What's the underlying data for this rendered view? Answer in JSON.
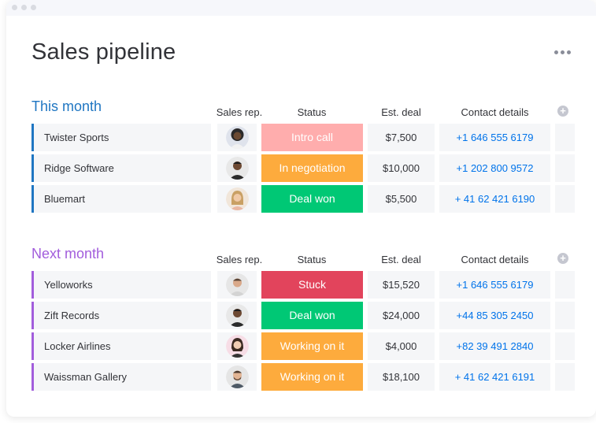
{
  "board": {
    "title": "Sales pipeline",
    "more_icon": "ellipsis-icon"
  },
  "columns": {
    "rep": "Sales rep.",
    "status": "Status",
    "deal": "Est. deal",
    "contact": "Contact details"
  },
  "colors": {
    "status_intro": "#ffadad",
    "status_negotiation": "#fdab3d",
    "status_won": "#00c875",
    "status_stuck": "#e2445c",
    "status_working": "#fdab3d",
    "this_month": "#1f76c2",
    "next_month": "#a25ddc"
  },
  "groups": [
    {
      "title": "This month",
      "color": "#1f76c2",
      "rows": [
        {
          "name": "Twister Sports",
          "status": "Intro call",
          "status_color": "#ffadad",
          "deal": "$7,500",
          "contact": "+1 646 555 6179",
          "avatar": "person-avatar"
        },
        {
          "name": "Ridge Software",
          "status": "In negotiation",
          "status_color": "#fdab3d",
          "deal": "$10,000",
          "contact": "+1 202 800 9572",
          "avatar": "person-avatar"
        },
        {
          "name": "Bluemart",
          "status": "Deal won",
          "status_color": "#00c875",
          "deal": "$5,500",
          "contact": "+ 41 62 421 6190",
          "avatar": "person-avatar"
        }
      ]
    },
    {
      "title": "Next month",
      "color": "#a25ddc",
      "rows": [
        {
          "name": "Yelloworks",
          "status": "Stuck",
          "status_color": "#e2445c",
          "deal": "$15,520",
          "contact": "+1 646 555 6179",
          "avatar": "person-avatar"
        },
        {
          "name": "Zift Records",
          "status": "Deal won",
          "status_color": "#00c875",
          "deal": "$24,000",
          "contact": "+44 85 305 2450",
          "avatar": "person-avatar"
        },
        {
          "name": "Locker Airlines",
          "status": "Working on it",
          "status_color": "#fdab3d",
          "deal": "$4,000",
          "contact": "+82 39 491 2840",
          "avatar": "person-avatar"
        },
        {
          "name": "Waissman Gallery",
          "status": "Working on it",
          "status_color": "#fdab3d",
          "deal": "$18,100",
          "contact": "+ 41 62 421 6191",
          "avatar": "person-avatar"
        }
      ]
    }
  ]
}
